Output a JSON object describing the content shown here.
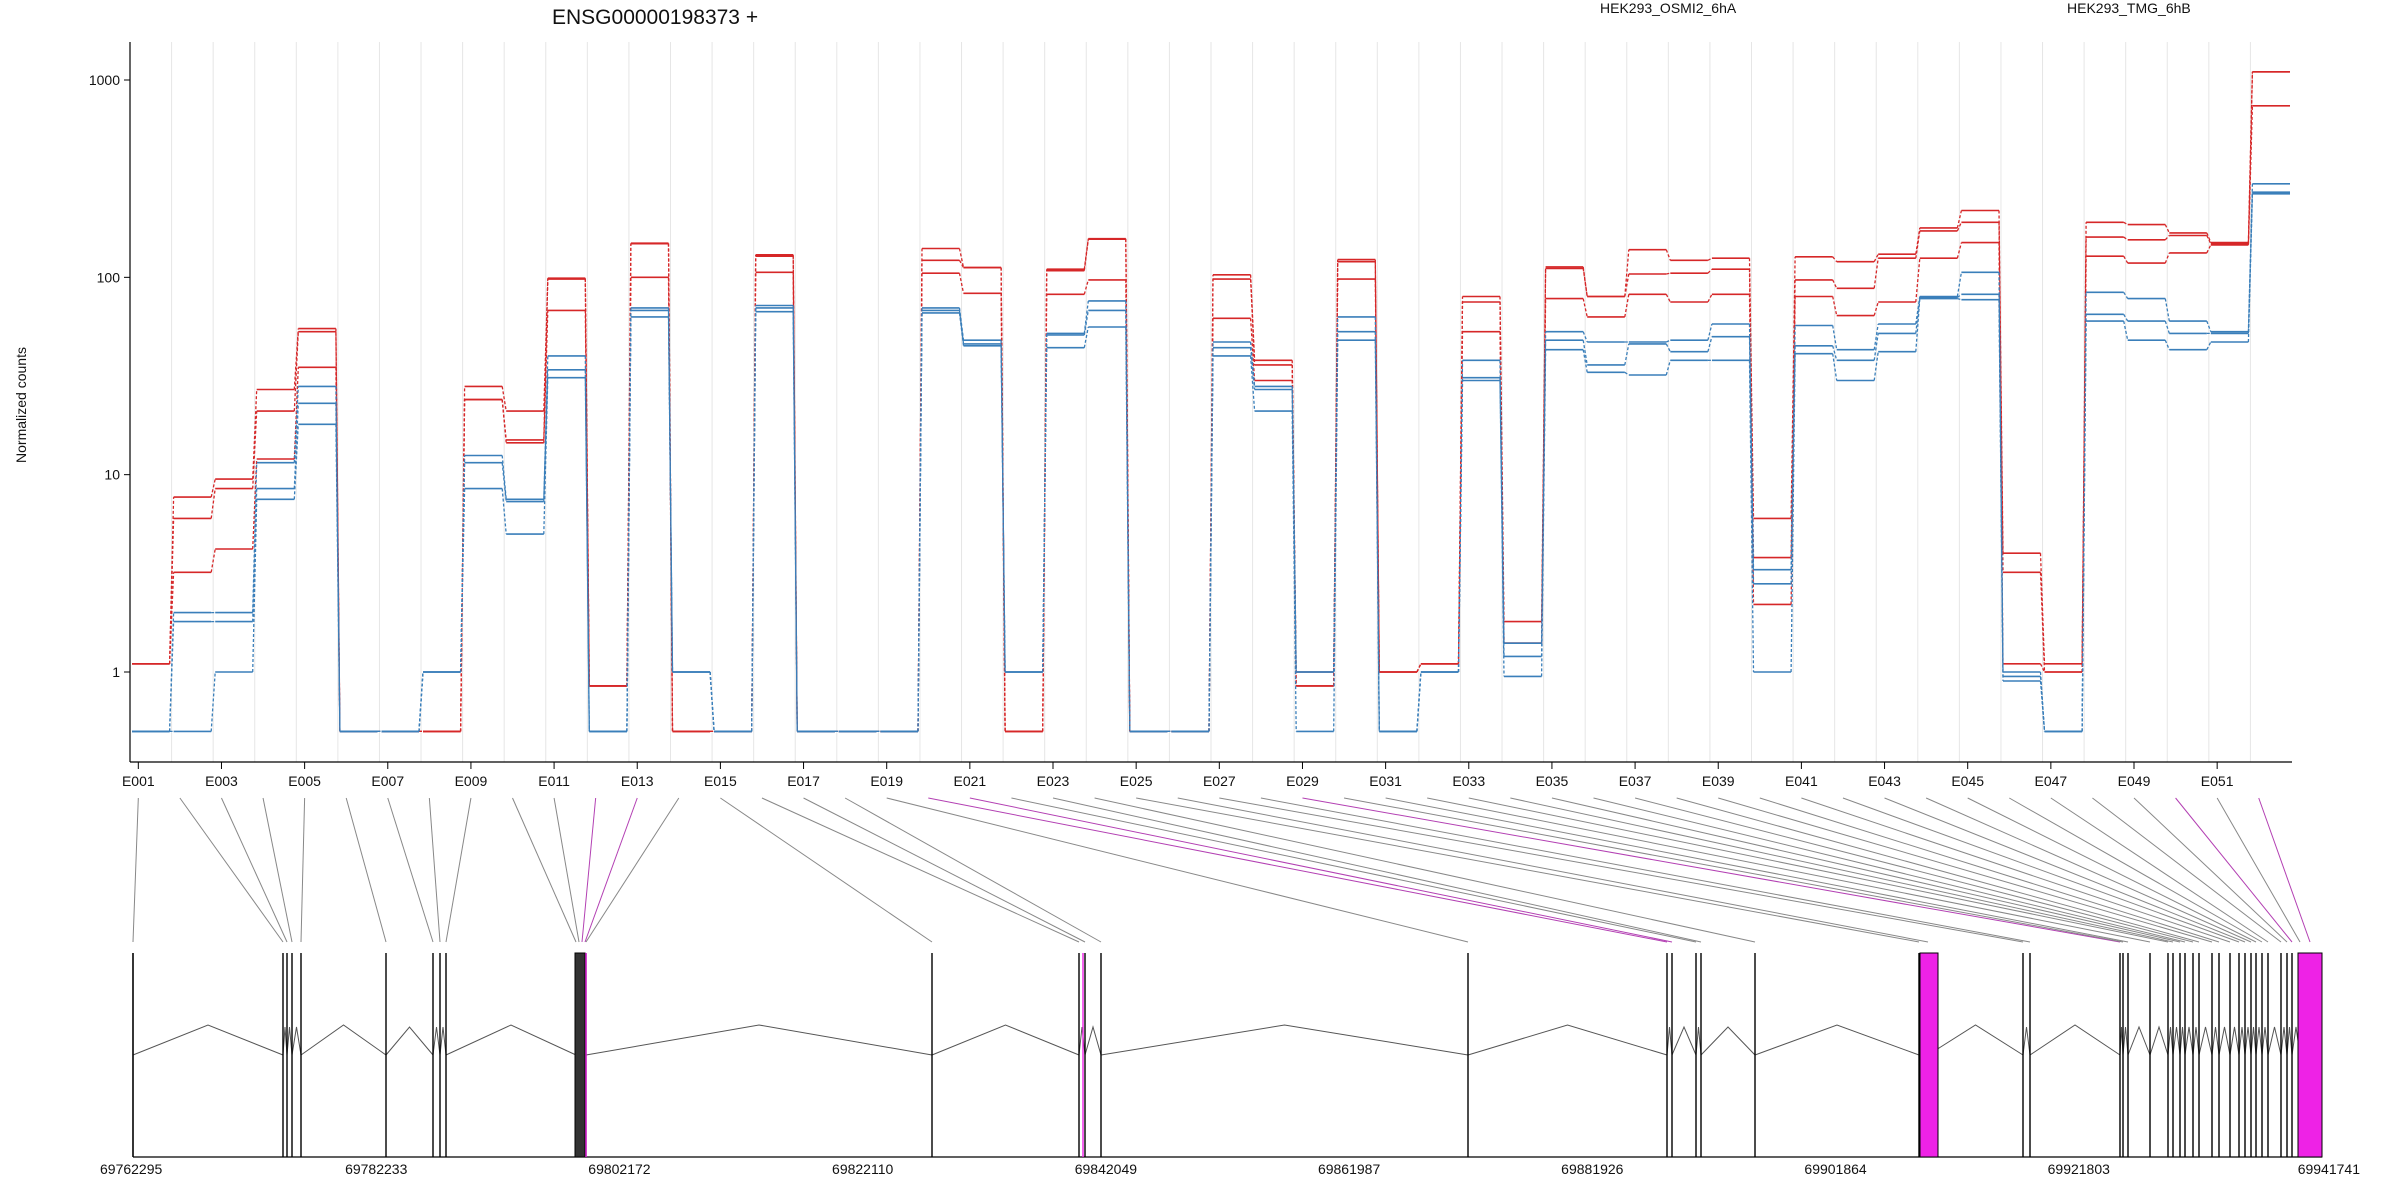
{
  "chart_data": {
    "type": "line",
    "title": "ENSG00000198373 +",
    "ylabel": "Normalized counts",
    "yscale": "log",
    "ylim": [
      0.5,
      1500
    ],
    "yticks": [
      "1",
      "10",
      "100",
      "1000"
    ],
    "legend": {
      "placement": "top",
      "entries": [
        {
          "label": "HEK293_OSMI2_6hA",
          "color": "#d62728"
        },
        {
          "label": "HEK293_TMG_6hB",
          "color": "#3a7fba"
        }
      ]
    },
    "exon_tick_labels": [
      "E001",
      "E003",
      "E005",
      "E007",
      "E009",
      "E011",
      "E013",
      "E015",
      "E017",
      "E019",
      "E021",
      "E023",
      "E025",
      "E027",
      "E029",
      "E031",
      "E033",
      "E035",
      "E037",
      "E039",
      "E041",
      "E043",
      "E045",
      "E047",
      "E049",
      "E051"
    ],
    "exon_count": 52,
    "series_groups": [
      {
        "group": "HEK293_OSMI2_6hA",
        "color": "#d62728",
        "lines": [
          {
            "values": [
              1.1,
              7.7,
              9.5,
              27,
              55,
              0.5,
              0.5,
              0.5,
              28,
              21,
              99,
              0.85,
              148,
              0.5,
              0.5,
              130,
              0.5,
              0.5,
              0.5,
              140,
              112,
              0.5,
              110,
              157,
              0.5,
              0.5,
              103,
              38,
              1,
              123,
              1,
              1.1,
              80,
              1.8,
              113,
              80,
              138,
              122,
              125,
              6,
              127,
              120,
              131,
              178,
              218,
              4,
              1.1,
              190,
              185,
              168,
              150,
              1100
            ]
          },
          {
            "values": [
              1.1,
              6,
              8.5,
              21,
              53,
              0.5,
              0.5,
              0.5,
              24,
              15,
              98,
              0.85,
              149,
              0.5,
              0.5,
              128,
              0.5,
              0.5,
              0.5,
              122,
              112,
              0.5,
              108,
              156,
              0.5,
              0.5,
              98,
              36,
              0.85,
              120,
              1,
              1.1,
              75,
              1.4,
              111,
              80,
              104,
              105,
              110,
              3.8,
              97,
              88,
              125,
              172,
              190,
              3.2,
              1,
              160,
              155,
              163,
              148,
              1100
            ]
          },
          {
            "values": [
              1.1,
              3.2,
              4.2,
              12,
              35,
              0.5,
              0.5,
              0.5,
              24,
              14.5,
              68,
              0.85,
              100,
              0.5,
              0.5,
              106,
              0.5,
              0.5,
              0.5,
              105,
              83,
              0.5,
              82,
              97,
              0.5,
              0.5,
              62,
              30,
              0.85,
              98,
              1,
              1.1,
              53,
              1.4,
              78,
              63,
              82,
              75,
              82,
              2.2,
              80,
              64,
              75,
              125,
              150,
              1.1,
              1,
              128,
              118,
              133,
              146,
              740
            ]
          }
        ]
      },
      {
        "group": "HEK293_TMG_6hB",
        "color": "#3a7fba",
        "lines": [
          {
            "values": [
              0.5,
              2,
              2,
              11.5,
              28,
              0.5,
              0.5,
              1,
              12.5,
              7.5,
              40,
              0.5,
              70,
              1,
              0.5,
              72,
              0.5,
              0.5,
              0.5,
              70,
              48,
              1,
              52,
              76,
              0.5,
              0.5,
              47,
              28,
              1,
              63,
              0.5,
              1,
              38,
              1.4,
              53,
              47,
              47,
              48,
              58,
              3.3,
              57,
              43,
              58,
              80,
              106,
              1,
              0.5,
              84,
              78,
              60,
              53,
              298
            ]
          },
          {
            "values": [
              0.5,
              1.8,
              1.8,
              8.5,
              23,
              0.5,
              0.5,
              1,
              11.5,
              7.3,
              34,
              0.5,
              68,
              1,
              0.5,
              70,
              0.5,
              0.5,
              0.5,
              68,
              46,
              1,
              51,
              68,
              0.5,
              0.5,
              44,
              27,
              1,
              53,
              0.5,
              1,
              31,
              1.2,
              48,
              36,
              46,
              42,
              50,
              2.8,
              45,
              38,
              52,
              79,
              82,
              0.95,
              0.5,
              65,
              60,
              52,
              52,
              270
            ]
          },
          {
            "values": [
              0.5,
              0.5,
              1,
              7.5,
              18,
              0.5,
              0.5,
              1,
              8.5,
              5,
              31,
              0.5,
              63,
              1,
              0.5,
              67,
              0.5,
              0.5,
              0.5,
              66,
              45,
              1,
              44,
              56,
              0.5,
              0.5,
              40,
              21,
              0.5,
              48,
              0.5,
              1,
              30,
              0.95,
              43,
              33,
              32,
              38,
              38,
              1,
              41,
              30,
              42,
              78,
              77,
              0.9,
              0.5,
              60,
              48,
              43,
              47,
              265
            ]
          }
        ]
      }
    ],
    "genomic_axis_labels": [
      "69762295",
      "69782233",
      "69802172",
      "69822110",
      "69842049",
      "69861987",
      "69881926",
      "69901864",
      "69921803",
      "69941741"
    ],
    "genomic_range": [
      69762295,
      69941741
    ],
    "gene_model_highlight_color": "#ee22e6",
    "gene_model_exon_color": "#000000"
  }
}
